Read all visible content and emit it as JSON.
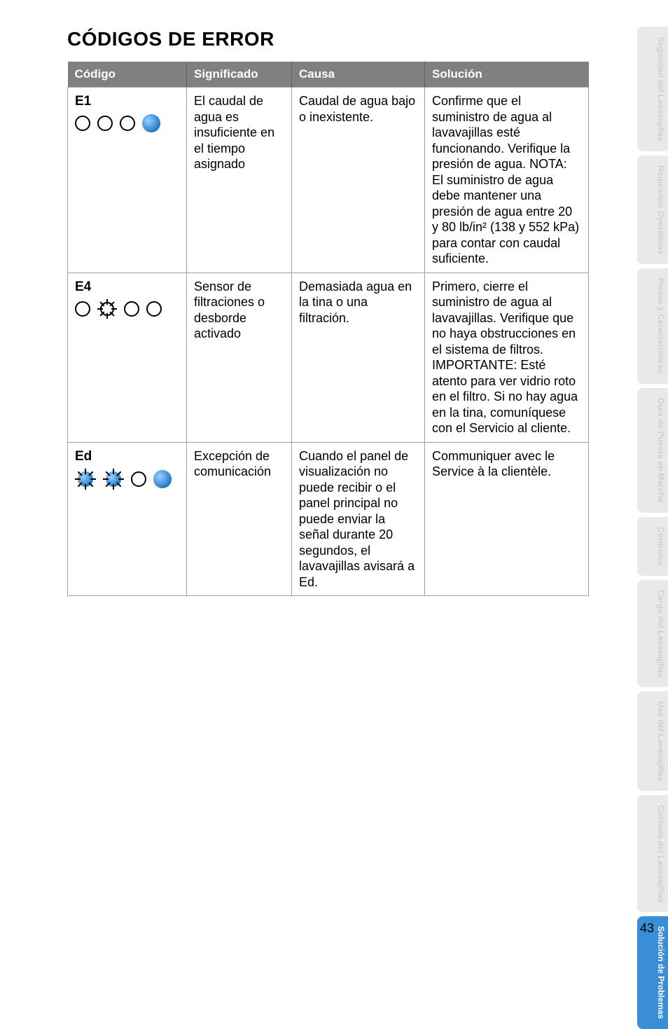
{
  "title": "CÓDIGOS DE ERROR",
  "page_number": "43",
  "headers": {
    "codigo": "Código",
    "significado": "Significado",
    "causa": "Causa",
    "solucion": "Solución"
  },
  "rows": {
    "r1": {
      "code": "E1",
      "significado": "El caudal de agua es insuficiente en el tiempo asignado",
      "causa": "Caudal de agua bajo o inexistente.",
      "solucion": "Confirme que el suministro de agua al lavavajillas esté funcionando. Verifique la presión de agua. NOTA: El suministro de agua debe mantener una presión de agua entre 20 y 80 lb/in² (138 y 552 kPa) para contar con caudal suficiente."
    },
    "r2": {
      "code": "E4",
      "significado": "Sensor de filtraciones o desborde activado",
      "causa": "Demasiada agua en la tina o una filtración.",
      "solucion": "Primero, cierre el suministro de agua al lavavajillas. Verifique que no haya obstrucciones en el sistema de filtros. IMPORTANTE: Esté atento para ver vidrio roto en el filtro. Si no hay agua en la tina, comuníquese con el Servicio al cliente."
    },
    "r3": {
      "code": "Ed",
      "significado": "Excepción de comunicación",
      "causa": "Cuando el panel de visualización no puede recibir o el panel principal no puede enviar la señal durante 20 segundos, el lavavajillas avisará a Ed.",
      "solucion": "Communiquer avec le Service à la clientèle."
    }
  },
  "tabs": {
    "t1": "Seguridad del Lavavajillas",
    "t2": "Requisitos Operativos",
    "t3": "Piezas y Características",
    "t4": "Guía de Puesta en Marcha",
    "t5": "Controles",
    "t6": "Carga del Lavavajillas",
    "t7": "Uso del Lavavajillas",
    "t8": "Cuidado del Lavavajillas",
    "t9": "Solución de Problemas"
  }
}
